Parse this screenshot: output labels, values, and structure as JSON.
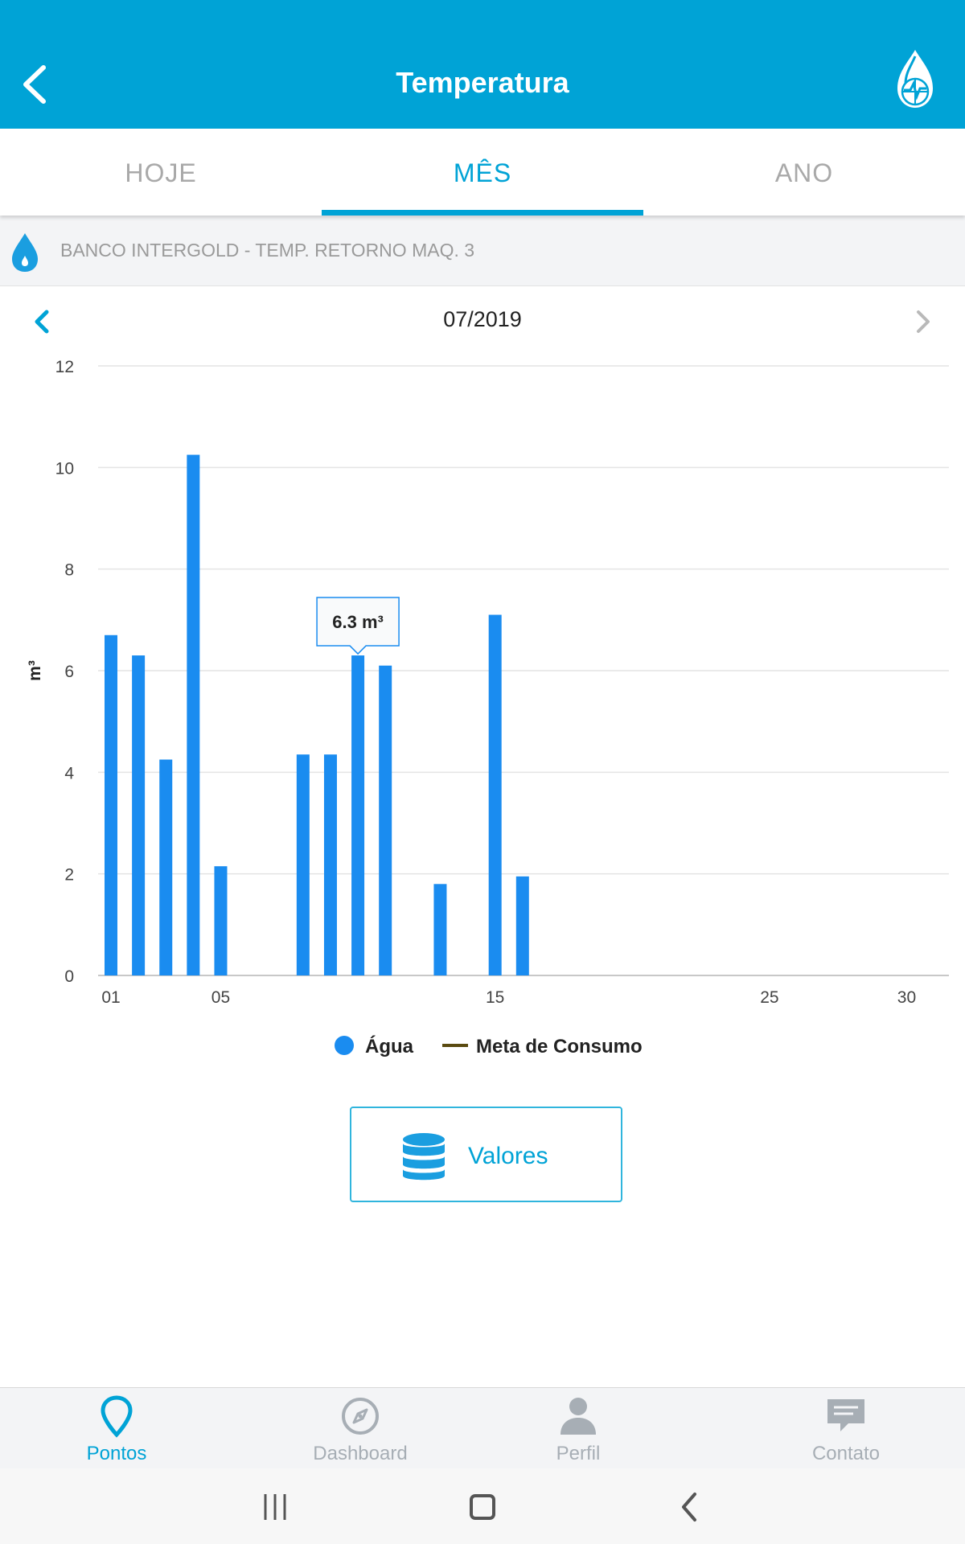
{
  "header": {
    "title": "Temperatura",
    "back_icon": "chevron-left-icon",
    "logo_icon": "water-drop-globe-logo"
  },
  "tabs": [
    {
      "label": "HOJE",
      "active": false
    },
    {
      "label": "MÊS",
      "active": true
    },
    {
      "label": "ANO",
      "active": false
    }
  ],
  "point": {
    "icon": "water-drop-icon",
    "name": "BANCO INTERGOLD - TEMP. RETORNO MAQ. 3"
  },
  "period": {
    "label": "07/2019",
    "prev_icon": "chevron-left-icon",
    "next_icon": "chevron-right-icon"
  },
  "chart_data": {
    "type": "bar",
    "ylabel": "m³",
    "ylim": [
      0,
      12
    ],
    "yticks": [
      "0",
      "2",
      "4",
      "6",
      "8",
      "10",
      "12"
    ],
    "xlim": [
      1,
      31
    ],
    "xticks": [
      {
        "day": 1,
        "label": "01"
      },
      {
        "day": 5,
        "label": "05"
      },
      {
        "day": 15,
        "label": "15"
      },
      {
        "day": 25,
        "label": "25"
      },
      {
        "day": 30,
        "label": "30"
      }
    ],
    "grid": true,
    "series": [
      {
        "name": "Água",
        "color": "#1a8cf0",
        "data": [
          {
            "day": 1,
            "value": 6.7
          },
          {
            "day": 2,
            "value": 6.3
          },
          {
            "day": 3,
            "value": 4.25
          },
          {
            "day": 4,
            "value": 10.25
          },
          {
            "day": 5,
            "value": 2.15
          },
          {
            "day": 8,
            "value": 4.35
          },
          {
            "day": 9,
            "value": 4.35
          },
          {
            "day": 10,
            "value": 6.3
          },
          {
            "day": 11,
            "value": 6.1
          },
          {
            "day": 13,
            "value": 1.8
          },
          {
            "day": 15,
            "value": 7.1
          },
          {
            "day": 16,
            "value": 1.95
          }
        ]
      },
      {
        "name": "Meta de Consumo",
        "color": "#5a4a10",
        "data": []
      }
    ],
    "tooltip": {
      "day": 10,
      "text": "6.3 m³"
    },
    "legend_position": "bottom"
  },
  "actions": {
    "valores_label": "Valores",
    "valores_icon": "database-icon"
  },
  "bottom_nav": [
    {
      "label": "Pontos",
      "icon": "map-pin-icon",
      "active": true
    },
    {
      "label": "Dashboard",
      "icon": "compass-icon",
      "active": false
    },
    {
      "label": "Perfil",
      "icon": "user-icon",
      "active": false
    },
    {
      "label": "Contato",
      "icon": "chat-icon",
      "active": false
    }
  ],
  "colors": {
    "primary": "#00a3d6",
    "bar": "#1a8cf0",
    "inactive": "#a7aeb5"
  }
}
